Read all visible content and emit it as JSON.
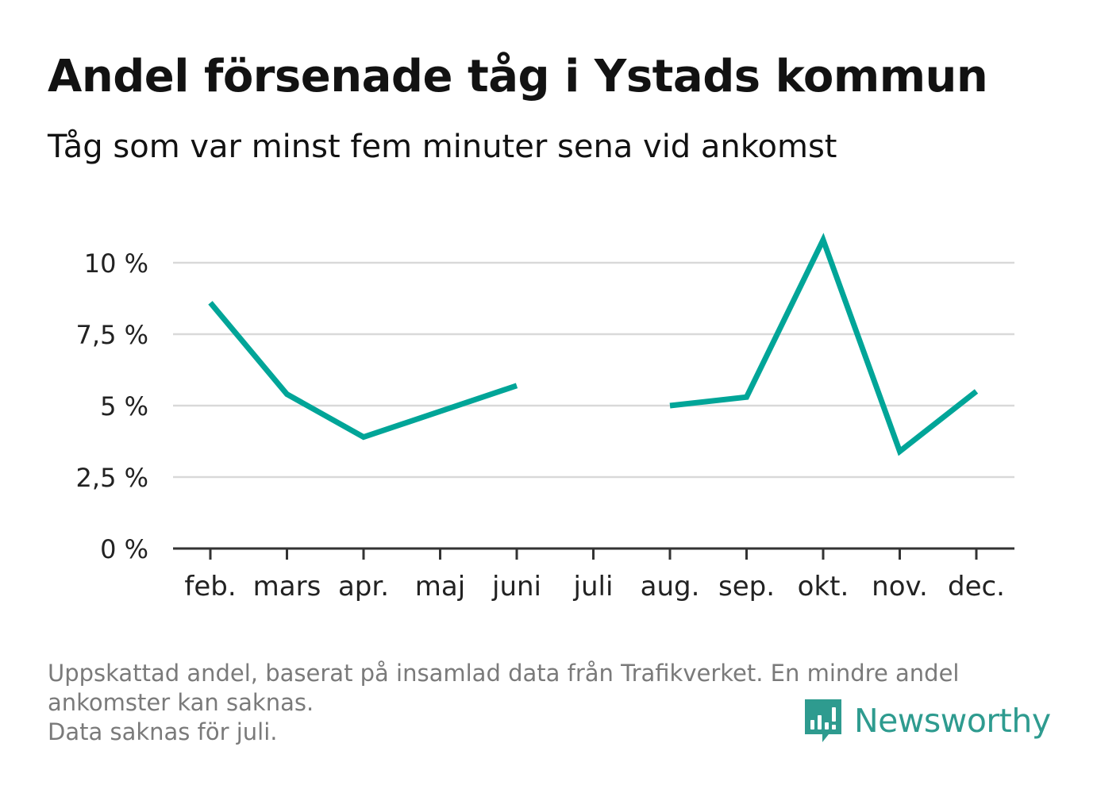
{
  "header": {
    "title": "Andel försenade tåg i Ystads kommun",
    "subtitle": "Tåg som var minst fem minuter sena vid ankomst"
  },
  "footnote": {
    "line1": "Uppskattad andel, baserat på insamlad data från Trafikverket. En mindre andel",
    "line2": "ankomster kan saknas.",
    "line3": "Data saknas för juli."
  },
  "brand": {
    "name": "Newsworthy",
    "logo_icon": "bar-chart-speech-bubble-icon",
    "color": "#2e9b8f"
  },
  "chart_data": {
    "type": "line",
    "title": "Andel försenade tåg i Ystads kommun",
    "subtitle": "Tåg som var minst fem minuter sena vid ankomst",
    "xlabel": "",
    "ylabel": "",
    "categories": [
      "feb.",
      "mars",
      "apr.",
      "maj",
      "juni",
      "juli",
      "aug.",
      "sep.",
      "okt.",
      "nov.",
      "dec."
    ],
    "series": [
      {
        "values": [
          8.6,
          5.4,
          3.9,
          4.8,
          5.7,
          null,
          5.0,
          5.3,
          10.8,
          3.4,
          5.5
        ],
        "color": "#00a598"
      }
    ],
    "ylim": [
      0,
      10
    ],
    "yticks": [
      0,
      2.5,
      5,
      7.5,
      10
    ],
    "ytick_labels": [
      "0 %",
      "2,5 %",
      "5 %",
      "7,5 %",
      "10 %"
    ],
    "grid": true,
    "legend": "none"
  }
}
